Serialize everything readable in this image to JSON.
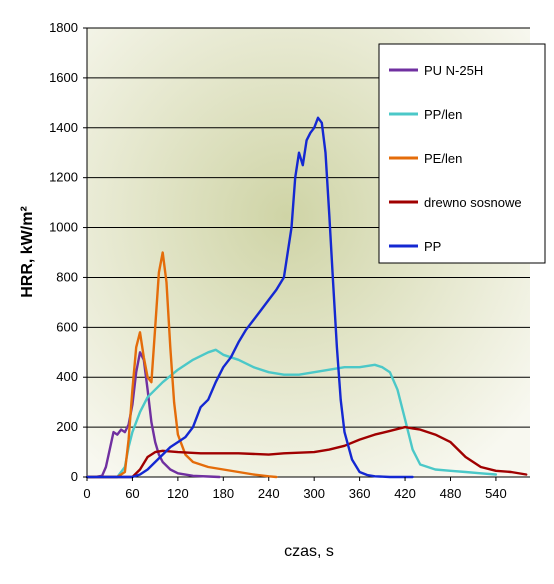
{
  "chart_data": {
    "type": "line",
    "title": "",
    "xlabel": "czas, s",
    "ylabel": "HRR, kW/m²",
    "xlim": [
      0,
      585
    ],
    "ylim": [
      0,
      1800
    ],
    "x_ticks": [
      0,
      60,
      120,
      180,
      240,
      300,
      360,
      420,
      480,
      540
    ],
    "y_ticks": [
      0,
      200,
      400,
      600,
      800,
      1000,
      1200,
      1400,
      1600,
      1800
    ],
    "grid": "horizontal",
    "legend_position": "top-right",
    "series": [
      {
        "name": "PU N-25H",
        "color": "#7030a0",
        "x": [
          0,
          10,
          20,
          25,
          30,
          35,
          40,
          45,
          50,
          55,
          60,
          65,
          70,
          75,
          80,
          85,
          90,
          95,
          100,
          110,
          120,
          140,
          160,
          175
        ],
        "y": [
          0,
          0,
          5,
          40,
          110,
          180,
          170,
          190,
          180,
          210,
          290,
          420,
          500,
          470,
          350,
          220,
          140,
          90,
          60,
          30,
          15,
          5,
          2,
          0
        ]
      },
      {
        "name": "PP/len",
        "color": "#4bc8c8",
        "x": [
          0,
          40,
          50,
          55,
          60,
          70,
          80,
          100,
          120,
          140,
          160,
          170,
          180,
          200,
          220,
          240,
          260,
          280,
          300,
          320,
          340,
          360,
          380,
          390,
          400,
          410,
          420,
          430,
          440,
          460,
          480,
          500,
          520,
          540
        ],
        "y": [
          0,
          0,
          40,
          120,
          180,
          260,
          320,
          380,
          430,
          470,
          500,
          510,
          490,
          470,
          440,
          420,
          410,
          410,
          420,
          430,
          440,
          440,
          450,
          440,
          420,
          350,
          230,
          110,
          50,
          30,
          25,
          20,
          15,
          10
        ]
      },
      {
        "name": "PE/len",
        "color": "#e46c0a",
        "x": [
          0,
          40,
          50,
          55,
          60,
          65,
          70,
          75,
          80,
          85,
          90,
          95,
          100,
          105,
          110,
          115,
          120,
          130,
          140,
          160,
          180,
          200,
          220,
          240,
          250
        ],
        "y": [
          0,
          0,
          20,
          150,
          350,
          520,
          580,
          480,
          400,
          380,
          600,
          820,
          900,
          780,
          520,
          300,
          170,
          90,
          60,
          40,
          30,
          20,
          10,
          3,
          0
        ]
      },
      {
        "name": "drewno sosnowe",
        "color": "#a00000",
        "x": [
          0,
          60,
          70,
          80,
          90,
          100,
          120,
          150,
          200,
          240,
          260,
          300,
          320,
          340,
          360,
          380,
          400,
          420,
          430,
          440,
          460,
          480,
          500,
          520,
          540,
          560,
          580
        ],
        "y": [
          0,
          0,
          30,
          80,
          100,
          105,
          100,
          95,
          95,
          90,
          95,
          100,
          110,
          125,
          150,
          170,
          185,
          200,
          195,
          190,
          170,
          140,
          80,
          40,
          25,
          20,
          10
        ]
      },
      {
        "name": "PP",
        "color": "#1428d2",
        "x": [
          0,
          60,
          70,
          80,
          90,
          100,
          110,
          120,
          130,
          140,
          150,
          160,
          170,
          180,
          190,
          200,
          210,
          220,
          230,
          240,
          250,
          260,
          270,
          275,
          280,
          285,
          290,
          295,
          300,
          305,
          310,
          315,
          320,
          325,
          330,
          335,
          340,
          350,
          360,
          370,
          380,
          400,
          420,
          430
        ],
        "y": [
          0,
          0,
          10,
          30,
          60,
          90,
          120,
          140,
          160,
          200,
          280,
          310,
          380,
          440,
          480,
          540,
          590,
          630,
          670,
          710,
          750,
          800,
          1000,
          1200,
          1300,
          1250,
          1350,
          1380,
          1400,
          1440,
          1420,
          1300,
          1050,
          780,
          520,
          310,
          180,
          70,
          20,
          8,
          3,
          0,
          0,
          0
        ]
      }
    ]
  }
}
